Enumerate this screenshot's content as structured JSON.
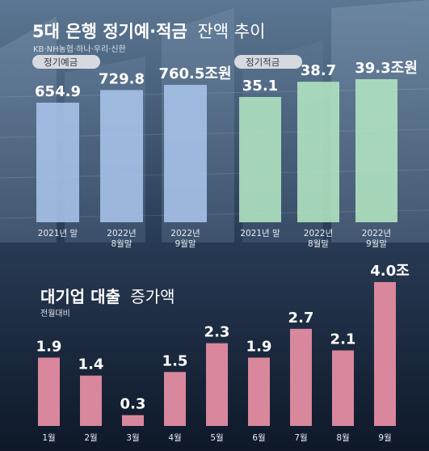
{
  "colors": {
    "bg_top": "#3f5a78",
    "bg_bottom": "#0f1a2c",
    "deposit_bar": "#a9c4ea",
    "savings_bar": "#b3e6c2",
    "loan_bar": "#d8879c",
    "pill_bg": "#d6dae0",
    "label_light": "#e8edf3"
  },
  "top": {
    "title_bold": "5대 은행 정기예·적금",
    "title_regular": "잔액 추이",
    "subtitle": "KB·NH농협·하나·우리·신한"
  },
  "bottom": {
    "title_bold": "대기업 대출",
    "title_regular": "증가액",
    "subtitle": "전월대비"
  },
  "chart_data": [
    {
      "type": "bar",
      "legend": "정기예금",
      "categories": [
        [
          "2021년 말"
        ],
        [
          "2022년",
          "8월말"
        ],
        [
          "2022년",
          "9월말"
        ]
      ],
      "values": [
        654.9,
        729.8,
        760.5
      ],
      "value_labels": [
        "654.9",
        "729.8",
        "760.5조원"
      ]
    },
    {
      "type": "bar",
      "legend": "정기적금",
      "categories": [
        [
          "2021년 말"
        ],
        [
          "2022년",
          "8월말"
        ],
        [
          "2022년",
          "9월말"
        ]
      ],
      "values": [
        35.1,
        38.7,
        39.3
      ],
      "value_labels": [
        "35.1",
        "38.7",
        "39.3조원"
      ]
    },
    {
      "type": "bar",
      "categories": [
        "1월",
        "2월",
        "3월",
        "4월",
        "5월",
        "6월",
        "7월",
        "8월",
        "9월"
      ],
      "values": [
        1.9,
        1.4,
        0.3,
        1.5,
        2.3,
        1.9,
        2.7,
        2.1,
        4.0
      ],
      "value_labels": [
        "1.9",
        "1.4",
        "0.3",
        "1.5",
        "2.3",
        "1.9",
        "2.7",
        "2.1",
        "4.0조"
      ]
    }
  ]
}
